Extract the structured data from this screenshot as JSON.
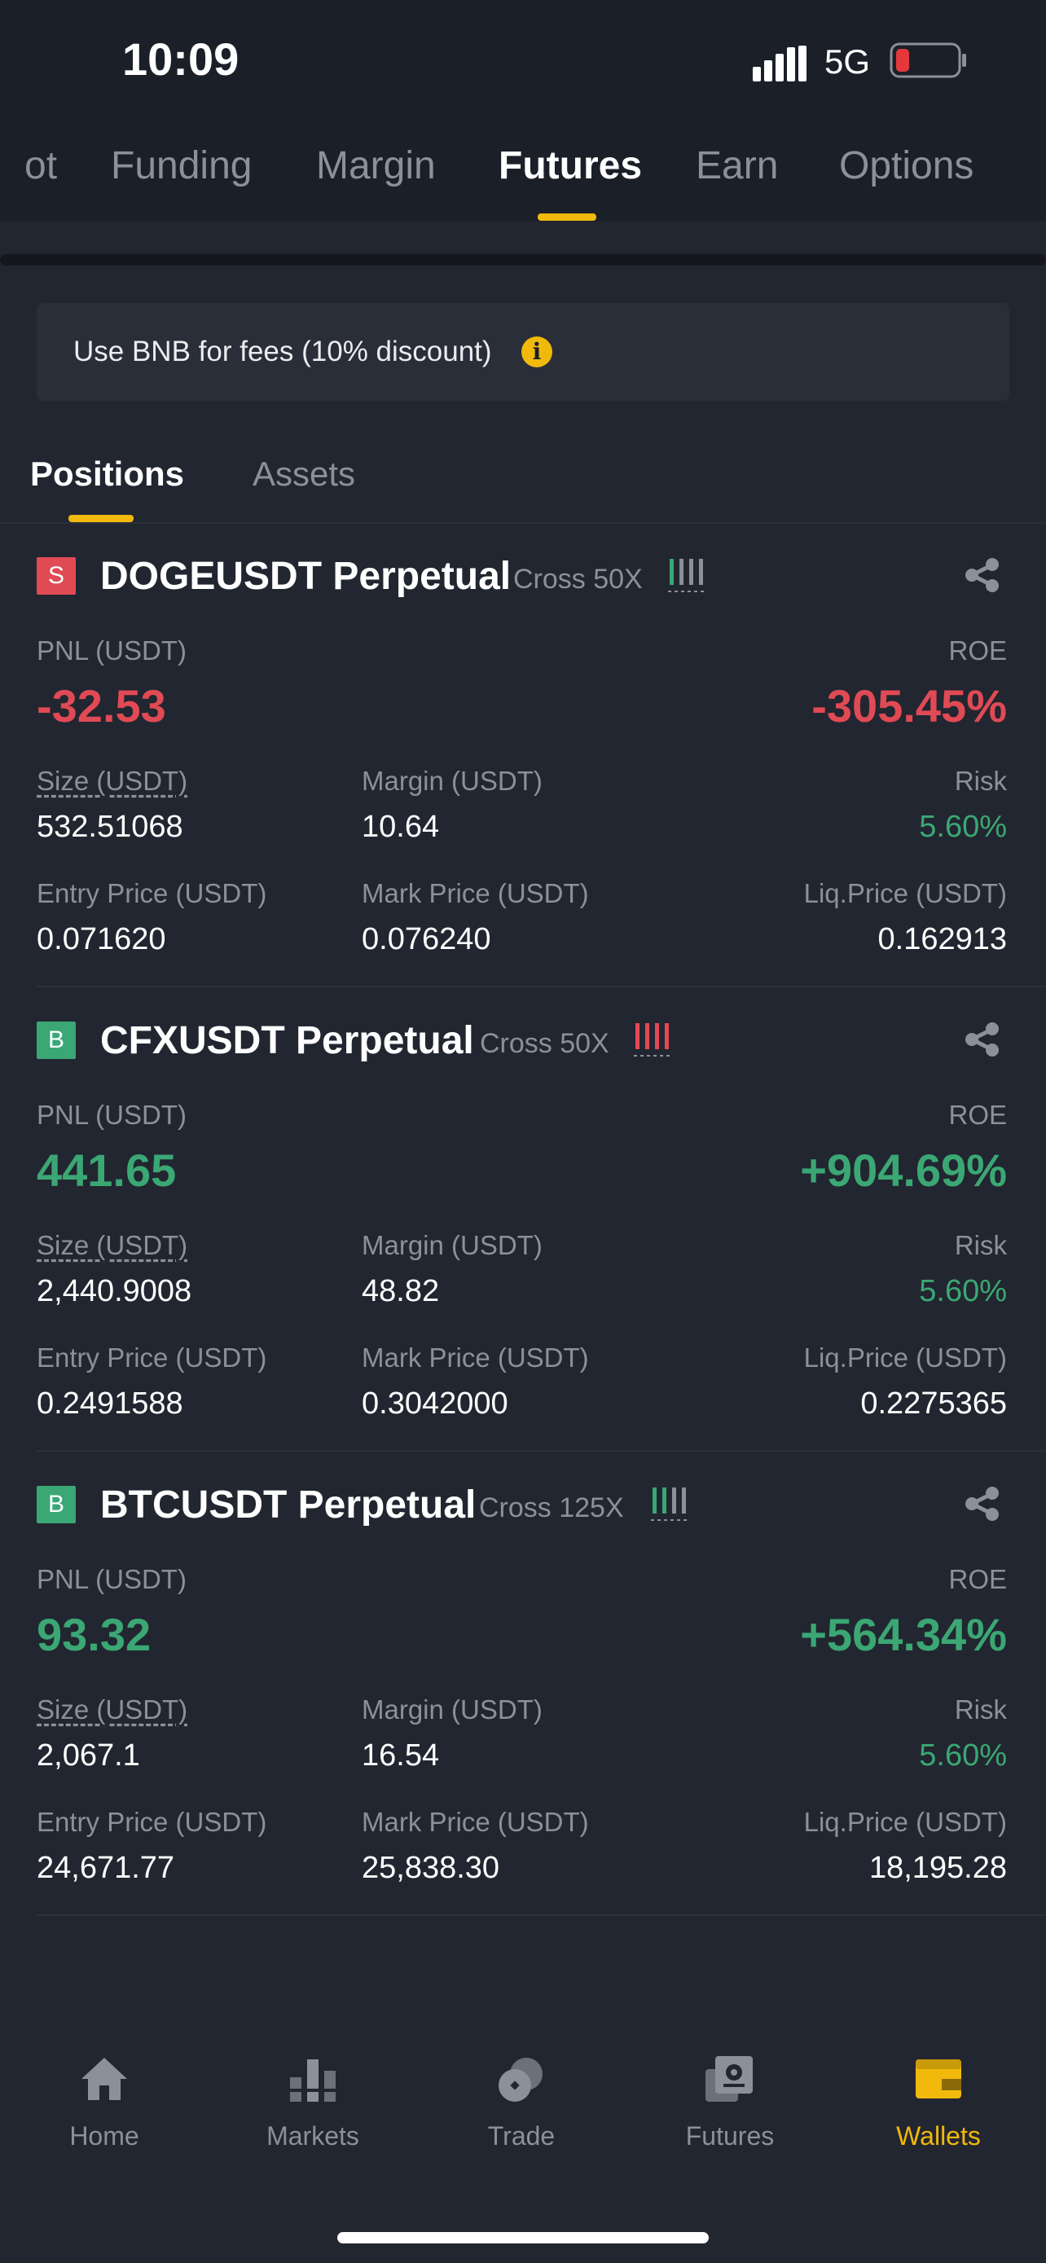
{
  "status_bar": {
    "time": "10:09",
    "network": "5G"
  },
  "top_tabs": [
    "ot",
    "Funding",
    "Margin",
    "Futures",
    "Earn",
    "Options"
  ],
  "top_tab_active": "Futures",
  "banner": {
    "text": "Use BNB for fees (10% discount)",
    "icon": "info-icon"
  },
  "sub_tabs": [
    "Positions",
    "Assets"
  ],
  "labels": {
    "pnl": "PNL (USDT)",
    "roe": "ROE",
    "size": "Size (USDT)",
    "margin": "Margin (USDT)",
    "risk": "Risk",
    "entry": "Entry Price (USDT)",
    "mark": "Mark Price (USDT)",
    "liq": "Liq.Price (USDT)"
  },
  "positions": [
    {
      "side": "S",
      "symbol": "DOGEUSDT Perpetual",
      "leverage": "Cross 50X",
      "pnl": "-32.53",
      "roe": "-305.45%",
      "size": "532.51068",
      "margin": "10.64",
      "risk": "5.60%",
      "entry_price": "0.071620",
      "mark_price": "0.076240",
      "liq_price": "0.162913"
    },
    {
      "side": "B",
      "symbol": "CFXUSDT Perpetual",
      "leverage": "Cross 50X",
      "pnl": "441.65",
      "roe": "+904.69%",
      "size": "2,440.9008",
      "margin": "48.82",
      "risk": "5.60%",
      "entry_price": "0.2491588",
      "mark_price": "0.3042000",
      "liq_price": "0.2275365"
    },
    {
      "side": "B",
      "symbol": "BTCUSDT Perpetual",
      "leverage": "Cross 125X",
      "pnl": "93.32",
      "roe": "+564.34%",
      "size": "2,067.1",
      "margin": "16.54",
      "risk": "5.60%",
      "entry_price": "24,671.77",
      "mark_price": "25,838.30",
      "liq_price": "18,195.28"
    }
  ],
  "bottom_nav": [
    {
      "label": "Home",
      "icon": "home-icon"
    },
    {
      "label": "Markets",
      "icon": "markets-icon"
    },
    {
      "label": "Trade",
      "icon": "trade-icon"
    },
    {
      "label": "Futures",
      "icon": "futures-icon"
    },
    {
      "label": "Wallets",
      "icon": "wallet-icon"
    }
  ],
  "bottom_nav_active": "Wallets",
  "colors": {
    "accent": "#f0b90b",
    "buy": "#3ba774",
    "sell": "#e04a55",
    "background": "#222630"
  }
}
